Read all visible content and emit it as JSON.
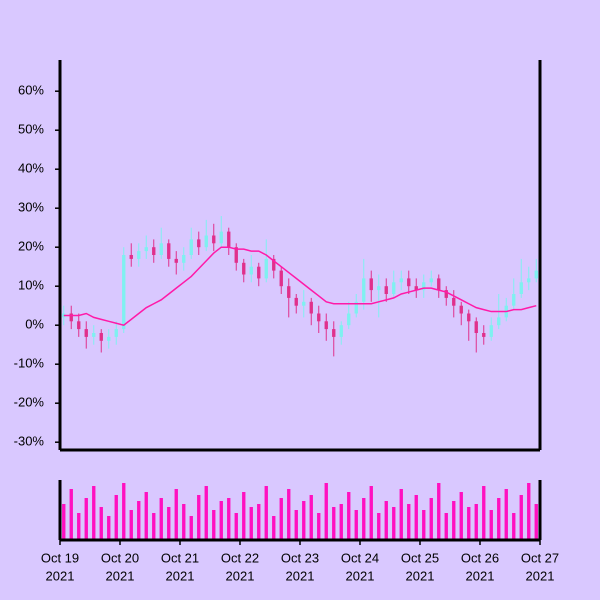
{
  "chart_data": {
    "type": "candlestick",
    "x": [
      0,
      0.125,
      0.25,
      0.375,
      0.5,
      0.625,
      0.75,
      0.875,
      1,
      1.125,
      1.25,
      1.375,
      1.5,
      1.625,
      1.75,
      1.875,
      2,
      2.125,
      2.25,
      2.375,
      2.5,
      2.625,
      2.75,
      2.875,
      3,
      3.125,
      3.25,
      3.375,
      3.5,
      3.625,
      3.75,
      3.875,
      4,
      4.125,
      4.25,
      4.375,
      4.5,
      4.625,
      4.75,
      4.875,
      5,
      5.125,
      5.25,
      5.375,
      5.5,
      5.625,
      5.75,
      5.875,
      6,
      6.125,
      6.25,
      6.375,
      6.5,
      6.625,
      6.75,
      6.875,
      7,
      7.125,
      7.25,
      7.375,
      7.5,
      7.625,
      7.75,
      7.875
    ],
    "open": [
      2,
      3,
      1,
      -1,
      -3,
      -2,
      -4,
      -3,
      -1,
      18,
      17,
      19,
      20,
      18,
      21,
      17,
      16,
      18,
      22,
      20,
      23,
      21,
      24,
      20,
      16,
      13,
      15,
      12,
      17,
      14,
      10,
      7,
      5,
      6,
      3,
      1,
      -1,
      -3,
      0,
      3,
      6,
      12,
      9,
      10,
      8,
      11,
      12,
      10,
      9,
      11,
      12,
      9,
      7,
      5,
      3,
      1,
      -2,
      -3,
      0,
      2,
      5,
      8,
      11,
      12
    ],
    "high": [
      5,
      5,
      3,
      1,
      0,
      -1,
      -1,
      1,
      20,
      21,
      21,
      23,
      22,
      25,
      22,
      19,
      20,
      25,
      24,
      27,
      26,
      28,
      25,
      21,
      17,
      18,
      16,
      22,
      18,
      15,
      12,
      8,
      9,
      7,
      5,
      3,
      1,
      1,
      6,
      8,
      17,
      14,
      13,
      12,
      14,
      14,
      14,
      12,
      13,
      14,
      13,
      10,
      9,
      6,
      4,
      2,
      0,
      2,
      8,
      7,
      12,
      17,
      15,
      17
    ],
    "low": [
      0,
      -1,
      -3,
      -6,
      -5,
      -7,
      -6,
      -5,
      -2,
      15,
      15,
      17,
      16,
      17,
      15,
      13,
      14,
      17,
      18,
      19,
      19,
      20,
      18,
      14,
      11,
      11,
      10,
      11,
      12,
      8,
      2,
      3,
      2,
      0,
      -2,
      -4,
      -8,
      -5,
      -1,
      2,
      4,
      6,
      2,
      6,
      7,
      9,
      8,
      7,
      7,
      10,
      7,
      5,
      2,
      0,
      -4,
      -7,
      -5,
      -4,
      -1,
      1,
      4,
      7,
      9,
      11
    ],
    "close": [
      3,
      1,
      -1,
      -3,
      -2,
      -4,
      -3,
      -1,
      18,
      17,
      19,
      20,
      18,
      21,
      17,
      16,
      18,
      22,
      20,
      23,
      21,
      24,
      20,
      16,
      13,
      15,
      12,
      17,
      14,
      10,
      7,
      5,
      6,
      3,
      1,
      -1,
      -3,
      0,
      3,
      6,
      12,
      9,
      10,
      8,
      11,
      12,
      10,
      9,
      11,
      12,
      9,
      7,
      5,
      3,
      1,
      -2,
      -3,
      0,
      2,
      5,
      8,
      11,
      12,
      14
    ],
    "ma": [
      2.5,
      2.5,
      2.5,
      3,
      2,
      1.5,
      1,
      0.5,
      0,
      1.5,
      3,
      4.5,
      5.5,
      6.5,
      8,
      9.5,
      11,
      12.5,
      14.5,
      16.5,
      18.5,
      20,
      20,
      19.5,
      19.5,
      19,
      19,
      18,
      16.5,
      15,
      13.5,
      12,
      10.5,
      9,
      7.5,
      6,
      5.5,
      5.5,
      5.5,
      5.5,
      5.5,
      5.5,
      6,
      6.5,
      7,
      8,
      8.5,
      9,
      9.5,
      9.5,
      9,
      8.5,
      7.5,
      6.5,
      5.5,
      4.5,
      4,
      3.5,
      3.5,
      3.5,
      4,
      4,
      4.5,
      5
    ],
    "volume": [
      60,
      85,
      45,
      70,
      90,
      55,
      40,
      75,
      95,
      50,
      65,
      80,
      45,
      70,
      55,
      85,
      60,
      40,
      75,
      90,
      50,
      65,
      70,
      45,
      80,
      55,
      60,
      90,
      40,
      70,
      85,
      50,
      65,
      75,
      45,
      95,
      55,
      60,
      80,
      50,
      70,
      90,
      45,
      65,
      55,
      85,
      60,
      75,
      50,
      70,
      95,
      45,
      65,
      80,
      55,
      60,
      90,
      50,
      70,
      85,
      45,
      75,
      95,
      60
    ],
    "up_color": "#7ff0f0",
    "down_color": "#e0308c",
    "ma_color": "#ff1aa8",
    "volume_color": "#ff10c0",
    "xlim": [
      0,
      8
    ],
    "xticks": [
      {
        "value": 0,
        "label": [
          "Oct 19",
          "2021"
        ]
      },
      {
        "value": 1,
        "label": [
          "Oct 20",
          "2021"
        ]
      },
      {
        "value": 2,
        "label": [
          "Oct 21",
          "2021"
        ]
      },
      {
        "value": 3,
        "label": [
          "Oct 22",
          "2021"
        ]
      },
      {
        "value": 4,
        "label": [
          "Oct 23",
          "2021"
        ]
      },
      {
        "value": 5,
        "label": [
          "Oct 24",
          "2021"
        ]
      },
      {
        "value": 6,
        "label": [
          "Oct 25",
          "2021"
        ]
      },
      {
        "value": 7,
        "label": [
          "Oct 26",
          "2021"
        ]
      },
      {
        "value": 8,
        "label": [
          "Oct 27",
          "2021"
        ]
      }
    ],
    "ylim": [
      -32,
      68
    ],
    "yticks": [
      {
        "value": -30,
        "label": "-30%"
      },
      {
        "value": -20,
        "label": "-20%"
      },
      {
        "value": -10,
        "label": "-10%"
      },
      {
        "value": 0,
        "label": "0%"
      },
      {
        "value": 10,
        "label": "10%"
      },
      {
        "value": 20,
        "label": "20%"
      },
      {
        "value": 30,
        "label": "30%"
      },
      {
        "value": 40,
        "label": "40%"
      },
      {
        "value": 50,
        "label": "50%"
      },
      {
        "value": 60,
        "label": "60%"
      }
    ],
    "volume_lim": [
      0,
      100
    ]
  }
}
